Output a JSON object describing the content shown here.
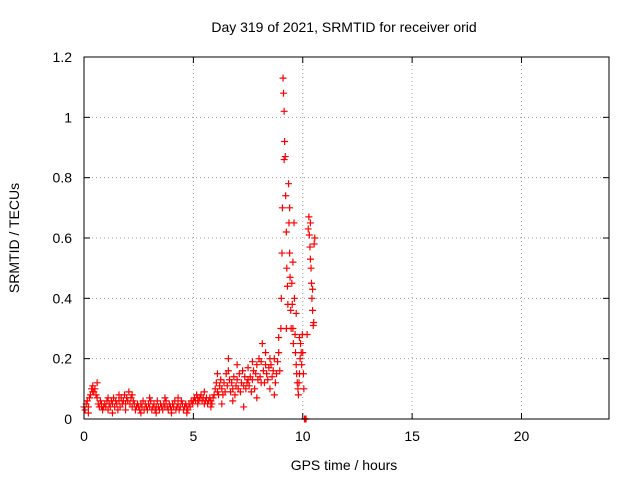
{
  "chart_data": {
    "type": "scatter",
    "title": "Day 319 of 2021, SRMTID for receiver orid",
    "xlabel": "GPS time / hours",
    "ylabel": "SRMTID / TECUs",
    "xlim": [
      0,
      24
    ],
    "ylim": [
      0,
      1.2
    ],
    "x_ticks": [
      0,
      5,
      10,
      15,
      20
    ],
    "x_tick_labels": [
      "0",
      "5",
      "10",
      "15",
      "20"
    ],
    "y_ticks": [
      0,
      0.2,
      0.4,
      0.6,
      0.8,
      1.0,
      1.2
    ],
    "y_tick_labels": [
      "0",
      "0.2",
      "0.4",
      "0.6",
      "0.8",
      "1",
      "1.2"
    ],
    "grid": true,
    "marker": "+",
    "color": "#ff0000",
    "series": [
      {
        "name": "SRMTID",
        "points": [
          [
            0.0,
            0.04
          ],
          [
            0.05,
            0.03
          ],
          [
            0.1,
            0.05
          ],
          [
            0.15,
            0.06
          ],
          [
            0.2,
            0.04
          ],
          [
            0.25,
            0.07
          ],
          [
            0.3,
            0.08
          ],
          [
            0.35,
            0.1
          ],
          [
            0.4,
            0.11
          ],
          [
            0.45,
            0.09
          ],
          [
            0.5,
            0.1
          ],
          [
            0.55,
            0.08
          ],
          [
            0.6,
            0.07
          ],
          [
            0.65,
            0.05
          ],
          [
            0.7,
            0.04
          ],
          [
            0.75,
            0.06
          ],
          [
            0.8,
            0.05
          ],
          [
            0.85,
            0.03
          ],
          [
            0.9,
            0.04
          ],
          [
            0.95,
            0.05
          ],
          [
            1.0,
            0.04
          ],
          [
            1.05,
            0.06
          ],
          [
            1.1,
            0.03
          ],
          [
            1.15,
            0.05
          ],
          [
            1.2,
            0.04
          ],
          [
            1.25,
            0.06
          ],
          [
            1.3,
            0.05
          ],
          [
            1.35,
            0.07
          ],
          [
            1.4,
            0.04
          ],
          [
            1.45,
            0.06
          ],
          [
            1.5,
            0.05
          ],
          [
            1.55,
            0.03
          ],
          [
            1.6,
            0.06
          ],
          [
            1.65,
            0.04
          ],
          [
            1.7,
            0.07
          ],
          [
            1.75,
            0.05
          ],
          [
            1.8,
            0.06
          ],
          [
            1.85,
            0.08
          ],
          [
            1.9,
            0.05
          ],
          [
            1.95,
            0.07
          ],
          [
            2.0,
            0.06
          ],
          [
            2.05,
            0.09
          ],
          [
            2.1,
            0.05
          ],
          [
            2.15,
            0.07
          ],
          [
            2.2,
            0.04
          ],
          [
            2.25,
            0.06
          ],
          [
            2.3,
            0.05
          ],
          [
            2.35,
            0.03
          ],
          [
            2.4,
            0.04
          ],
          [
            2.45,
            0.05
          ],
          [
            2.5,
            0.04
          ],
          [
            2.55,
            0.03
          ],
          [
            2.6,
            0.05
          ],
          [
            2.65,
            0.04
          ],
          [
            2.7,
            0.06
          ],
          [
            2.75,
            0.03
          ],
          [
            2.8,
            0.05
          ],
          [
            2.85,
            0.04
          ],
          [
            2.9,
            0.03
          ],
          [
            2.95,
            0.05
          ],
          [
            3.0,
            0.04
          ],
          [
            3.05,
            0.06
          ],
          [
            3.1,
            0.03
          ],
          [
            3.15,
            0.04
          ],
          [
            3.2,
            0.05
          ],
          [
            3.25,
            0.03
          ],
          [
            3.3,
            0.04
          ],
          [
            3.35,
            0.06
          ],
          [
            3.4,
            0.04
          ],
          [
            3.45,
            0.03
          ],
          [
            3.5,
            0.05
          ],
          [
            3.55,
            0.04
          ],
          [
            3.6,
            0.03
          ],
          [
            3.65,
            0.05
          ],
          [
            3.7,
            0.04
          ],
          [
            3.75,
            0.06
          ],
          [
            3.8,
            0.04
          ],
          [
            3.85,
            0.03
          ],
          [
            3.9,
            0.05
          ],
          [
            3.95,
            0.04
          ],
          [
            4.0,
            0.03
          ],
          [
            4.05,
            0.05
          ],
          [
            4.1,
            0.04
          ],
          [
            4.15,
            0.06
          ],
          [
            4.2,
            0.03
          ],
          [
            4.25,
            0.04
          ],
          [
            4.3,
            0.05
          ],
          [
            4.35,
            0.03
          ],
          [
            4.4,
            0.04
          ],
          [
            4.45,
            0.06
          ],
          [
            4.5,
            0.05
          ],
          [
            4.55,
            0.03
          ],
          [
            4.6,
            0.04
          ],
          [
            4.65,
            0.05
          ],
          [
            4.7,
            0.04
          ],
          [
            4.75,
            0.03
          ],
          [
            4.8,
            0.05
          ],
          [
            4.85,
            0.04
          ],
          [
            4.9,
            0.06
          ],
          [
            4.95,
            0.05
          ],
          [
            5.0,
            0.06
          ],
          [
            5.05,
            0.07
          ],
          [
            5.1,
            0.06
          ],
          [
            5.15,
            0.08
          ],
          [
            5.2,
            0.07
          ],
          [
            5.25,
            0.06
          ],
          [
            5.3,
            0.07
          ],
          [
            5.35,
            0.08
          ],
          [
            5.4,
            0.06
          ],
          [
            5.45,
            0.07
          ],
          [
            5.5,
            0.05
          ],
          [
            5.55,
            0.06
          ],
          [
            5.6,
            0.07
          ],
          [
            5.65,
            0.05
          ],
          [
            5.7,
            0.06
          ],
          [
            5.75,
            0.07
          ],
          [
            5.8,
            0.06
          ],
          [
            5.85,
            0.05
          ],
          [
            5.9,
            0.07
          ],
          [
            5.95,
            0.08
          ],
          [
            6.0,
            0.1
          ],
          [
            6.05,
            0.12
          ],
          [
            6.1,
            0.09
          ],
          [
            6.15,
            0.08
          ],
          [
            6.2,
            0.11
          ],
          [
            6.25,
            0.13
          ],
          [
            6.3,
            0.1
          ],
          [
            6.35,
            0.08
          ],
          [
            6.4,
            0.12
          ],
          [
            6.45,
            0.09
          ],
          [
            6.5,
            0.15
          ],
          [
            6.55,
            0.11
          ],
          [
            6.6,
            0.2
          ],
          [
            6.65,
            0.13
          ],
          [
            6.7,
            0.09
          ],
          [
            6.75,
            0.12
          ],
          [
            6.8,
            0.1
          ],
          [
            6.85,
            0.14
          ],
          [
            6.9,
            0.08
          ],
          [
            6.95,
            0.11
          ],
          [
            7.0,
            0.13
          ],
          [
            7.05,
            0.1
          ],
          [
            7.1,
            0.15
          ],
          [
            7.15,
            0.09
          ],
          [
            7.2,
            0.12
          ],
          [
            7.25,
            0.16
          ],
          [
            7.3,
            0.11
          ],
          [
            7.35,
            0.14
          ],
          [
            7.4,
            0.1
          ],
          [
            7.45,
            0.12
          ],
          [
            7.5,
            0.17
          ],
          [
            7.55,
            0.11
          ],
          [
            7.6,
            0.14
          ],
          [
            7.65,
            0.09
          ],
          [
            7.7,
            0.13
          ],
          [
            7.75,
            0.16
          ],
          [
            7.8,
            0.1
          ],
          [
            7.85,
            0.15
          ],
          [
            7.9,
            0.18
          ],
          [
            7.95,
            0.13
          ],
          [
            8.0,
            0.2
          ],
          [
            8.05,
            0.14
          ],
          [
            8.1,
            0.19
          ],
          [
            8.15,
            0.25
          ],
          [
            8.2,
            0.16
          ],
          [
            8.25,
            0.12
          ],
          [
            8.3,
            0.18
          ],
          [
            8.35,
            0.15
          ],
          [
            8.4,
            0.13
          ],
          [
            8.45,
            0.17
          ],
          [
            8.5,
            0.1
          ],
          [
            8.55,
            0.18
          ],
          [
            8.6,
            0.14
          ],
          [
            8.65,
            0.16
          ],
          [
            8.7,
            0.2
          ],
          [
            8.75,
            0.12
          ],
          [
            8.8,
            0.15
          ],
          [
            8.85,
            0.19
          ],
          [
            8.9,
            0.22
          ],
          [
            8.95,
            0.16
          ],
          [
            9.0,
            0.3
          ],
          [
            9.02,
            0.4
          ],
          [
            9.05,
            0.55
          ],
          [
            9.07,
            0.7
          ],
          [
            9.1,
            1.13
          ],
          [
            9.12,
            1.08
          ],
          [
            9.15,
            1.02
          ],
          [
            9.17,
            0.92
          ],
          [
            9.2,
            0.87
          ],
          [
            9.22,
            0.74
          ],
          [
            9.25,
            0.62
          ],
          [
            9.27,
            0.5
          ],
          [
            9.3,
            0.44
          ],
          [
            9.32,
            0.38
          ],
          [
            9.35,
            0.78
          ],
          [
            9.37,
            0.65
          ],
          [
            9.4,
            0.55
          ],
          [
            9.42,
            0.47
          ],
          [
            9.45,
            0.36
          ],
          [
            9.47,
            0.3
          ],
          [
            9.5,
            0.45
          ],
          [
            9.52,
            0.38
          ],
          [
            9.55,
            0.3
          ],
          [
            9.57,
            0.25
          ],
          [
            9.6,
            0.65
          ],
          [
            9.62,
            0.4
          ],
          [
            9.65,
            0.28
          ],
          [
            9.67,
            0.22
          ],
          [
            9.7,
            0.18
          ],
          [
            9.72,
            0.15
          ],
          [
            9.75,
            0.12
          ],
          [
            9.78,
            0.1
          ],
          [
            9.8,
            0.08
          ],
          [
            9.83,
            0.12
          ],
          [
            9.85,
            0.15
          ],
          [
            9.88,
            0.2
          ],
          [
            9.9,
            0.25
          ],
          [
            9.93,
            0.22
          ],
          [
            9.95,
            0.18
          ],
          [
            9.98,
            0.28
          ],
          [
            10.0,
            0.22
          ],
          [
            10.03,
            0.15
          ],
          [
            10.05,
            0.1
          ],
          [
            10.08,
            0.0
          ],
          [
            10.1,
            0.0
          ],
          [
            10.15,
            0.0
          ],
          [
            10.25,
            0.63
          ],
          [
            10.28,
            0.67
          ],
          [
            10.3,
            0.61
          ],
          [
            10.33,
            0.57
          ],
          [
            10.35,
            0.65
          ],
          [
            10.38,
            0.5
          ],
          [
            10.4,
            0.45
          ],
          [
            10.42,
            0.4
          ],
          [
            10.45,
            0.36
          ],
          [
            10.48,
            0.31
          ],
          [
            10.5,
            0.32
          ],
          [
            10.52,
            0.58
          ],
          [
            10.55,
            0.6
          ]
        ]
      }
    ],
    "scatter_extra": [
      [
        0.2,
        0.02
      ],
      [
        0.4,
        0.09
      ],
      [
        0.6,
        0.12
      ],
      [
        0.8,
        0.04
      ],
      [
        1.1,
        0.07
      ],
      [
        1.3,
        0.02
      ],
      [
        1.6,
        0.08
      ],
      [
        1.9,
        0.03
      ],
      [
        2.2,
        0.08
      ],
      [
        2.6,
        0.02
      ],
      [
        3.0,
        0.07
      ],
      [
        3.3,
        0.02
      ],
      [
        3.7,
        0.07
      ],
      [
        4.0,
        0.02
      ],
      [
        4.3,
        0.07
      ],
      [
        4.7,
        0.02
      ],
      [
        5.2,
        0.05
      ],
      [
        5.5,
        0.09
      ],
      [
        5.8,
        0.04
      ],
      [
        6.1,
        0.15
      ],
      [
        6.3,
        0.05
      ],
      [
        6.6,
        0.16
      ],
      [
        6.8,
        0.06
      ],
      [
        7.0,
        0.18
      ],
      [
        7.3,
        0.04
      ],
      [
        7.5,
        0.13
      ],
      [
        7.7,
        0.19
      ],
      [
        7.9,
        0.07
      ],
      [
        8.1,
        0.12
      ],
      [
        8.3,
        0.22
      ],
      [
        8.5,
        0.2
      ],
      [
        8.7,
        0.08
      ],
      [
        8.9,
        0.27
      ],
      [
        9.15,
        0.86
      ],
      [
        9.25,
        0.3
      ],
      [
        9.4,
        0.7
      ],
      [
        9.55,
        0.52
      ],
      [
        9.7,
        0.35
      ],
      [
        9.85,
        0.27
      ],
      [
        10.2,
        0.28
      ],
      [
        10.35,
        0.53
      ],
      [
        10.45,
        0.43
      ]
    ]
  }
}
